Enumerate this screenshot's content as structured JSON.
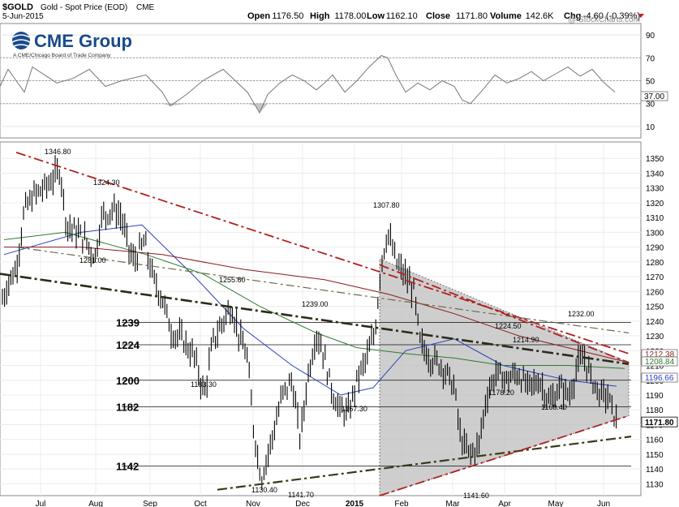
{
  "header": {
    "symbol": "$GOLD",
    "name": "Gold - Spot Price (EOD)",
    "exchange": "CME",
    "date": "5-Jun-2015",
    "watermark": "@ StockCharts.com",
    "quote": [
      {
        "label": "Open",
        "value": "1176.50"
      },
      {
        "label": "High",
        "value": "1178.00"
      },
      {
        "label": "Low",
        "value": "1162.10"
      },
      {
        "label": "Close",
        "value": "1171.80"
      },
      {
        "label": "Volume",
        "value": "142.6K"
      },
      {
        "label": "Chg",
        "value": "-4.60 (-0.39%)"
      }
    ]
  },
  "logo": {
    "text": "CME Group",
    "subtext": "A CME/Chicago Board of Trade Company"
  },
  "chart_data": [
    {
      "type": "line",
      "panel": "indicator",
      "yticks": [
        90,
        70,
        50,
        30,
        10
      ],
      "last_value_label": "37.00",
      "ylim": [
        0,
        100
      ],
      "reference_levels": [
        30,
        50,
        70
      ],
      "series": [
        {
          "x": [
            0,
            10,
            20,
            30,
            40,
            55,
            70,
            90,
            110,
            130,
            150,
            180,
            200,
            210,
            230,
            250,
            275,
            290,
            305,
            315,
            320,
            330,
            345,
            360,
            375,
            390,
            400,
            410,
            425,
            440,
            455,
            470,
            478,
            488,
            500,
            515,
            530,
            545,
            560,
            570,
            580,
            595,
            610,
            625,
            640,
            655,
            670,
            685,
            700,
            715,
            730,
            745,
            758
          ],
          "values": [
            45,
            60,
            50,
            40,
            62,
            55,
            48,
            52,
            60,
            45,
            50,
            55,
            40,
            28,
            38,
            50,
            60,
            50,
            40,
            28,
            22,
            38,
            48,
            55,
            50,
            42,
            48,
            55,
            40,
            50,
            62,
            72,
            70,
            55,
            40,
            48,
            42,
            50,
            45,
            33,
            30,
            42,
            55,
            48,
            52,
            58,
            50,
            56,
            62,
            54,
            60,
            48,
            40
          ]
        }
      ]
    },
    {
      "type": "candlestick",
      "panel": "price",
      "title": "",
      "ylim": [
        1122,
        1360
      ],
      "yticks": [
        1130,
        1140,
        1150,
        1160,
        1170,
        1180,
        1190,
        1200,
        1210,
        1220,
        1230,
        1240,
        1250,
        1260,
        1270,
        1280,
        1290,
        1300,
        1310,
        1320,
        1330,
        1340,
        1350
      ],
      "x_axis_months": [
        "Jul",
        "Aug",
        "Sep",
        "Oct",
        "Nov",
        "Dec",
        "2015",
        "Feb",
        "Mar",
        "Apr",
        "May",
        "Jun"
      ],
      "last_price_label": "1171.80",
      "right_axis_labels": [
        "1212.38",
        "1208.84",
        "1196.66"
      ],
      "horizontal_levels": [
        {
          "label": "1239",
          "value": 1239
        },
        {
          "label": "1224",
          "value": 1224
        },
        {
          "label": "1200",
          "value": 1200
        },
        {
          "label": "1182",
          "value": 1182
        },
        {
          "label": "1142",
          "value": 1142
        }
      ],
      "annotations": [
        "1346.80",
        "1324.30",
        "1281.00",
        "1255.60",
        "1239.00",
        "1183.30",
        "1141.70",
        "1130.40",
        "1167.30",
        "1307.80",
        "1224.50",
        "1214.90",
        "1232.00",
        "1178.20",
        "1168.40",
        "1141.60"
      ],
      "price_path": [
        {
          "x": 3,
          "y": 1255
        },
        {
          "x": 12,
          "y": 1268
        },
        {
          "x": 20,
          "y": 1275
        },
        {
          "x": 30,
          "y": 1315
        },
        {
          "x": 42,
          "y": 1325
        },
        {
          "x": 55,
          "y": 1330
        },
        {
          "x": 68,
          "y": 1338
        },
        {
          "x": 74,
          "y": 1343
        },
        {
          "x": 82,
          "y": 1305
        },
        {
          "x": 95,
          "y": 1300
        },
        {
          "x": 105,
          "y": 1295
        },
        {
          "x": 117,
          "y": 1283
        },
        {
          "x": 125,
          "y": 1310
        },
        {
          "x": 140,
          "y": 1316
        },
        {
          "x": 150,
          "y": 1310
        },
        {
          "x": 158,
          "y": 1290
        },
        {
          "x": 165,
          "y": 1280
        },
        {
          "x": 178,
          "y": 1294
        },
        {
          "x": 188,
          "y": 1270
        },
        {
          "x": 200,
          "y": 1255
        },
        {
          "x": 212,
          "y": 1232
        },
        {
          "x": 225,
          "y": 1228
        },
        {
          "x": 240,
          "y": 1215
        },
        {
          "x": 252,
          "y": 1190
        },
        {
          "x": 262,
          "y": 1225
        },
        {
          "x": 275,
          "y": 1240
        },
        {
          "x": 285,
          "y": 1250
        },
        {
          "x": 295,
          "y": 1230
        },
        {
          "x": 305,
          "y": 1215
        },
        {
          "x": 312,
          "y": 1170
        },
        {
          "x": 322,
          "y": 1133
        },
        {
          "x": 335,
          "y": 1160
        },
        {
          "x": 348,
          "y": 1190
        },
        {
          "x": 360,
          "y": 1200
        },
        {
          "x": 370,
          "y": 1160
        },
        {
          "x": 380,
          "y": 1205
        },
        {
          "x": 390,
          "y": 1232
        },
        {
          "x": 398,
          "y": 1220
        },
        {
          "x": 408,
          "y": 1195
        },
        {
          "x": 418,
          "y": 1180
        },
        {
          "x": 430,
          "y": 1178
        },
        {
          "x": 440,
          "y": 1200
        },
        {
          "x": 452,
          "y": 1215
        },
        {
          "x": 462,
          "y": 1232
        },
        {
          "x": 470,
          "y": 1280
        },
        {
          "x": 478,
          "y": 1300
        },
        {
          "x": 488,
          "y": 1280
        },
        {
          "x": 500,
          "y": 1270
        },
        {
          "x": 510,
          "y": 1260
        },
        {
          "x": 518,
          "y": 1225
        },
        {
          "x": 530,
          "y": 1215
        },
        {
          "x": 545,
          "y": 1210
        },
        {
          "x": 560,
          "y": 1195
        },
        {
          "x": 568,
          "y": 1160
        },
        {
          "x": 578,
          "y": 1150
        },
        {
          "x": 590,
          "y": 1155
        },
        {
          "x": 600,
          "y": 1190
        },
        {
          "x": 612,
          "y": 1205
        },
        {
          "x": 625,
          "y": 1200
        },
        {
          "x": 638,
          "y": 1205
        },
        {
          "x": 650,
          "y": 1195
        },
        {
          "x": 665,
          "y": 1200
        },
        {
          "x": 678,
          "y": 1185
        },
        {
          "x": 690,
          "y": 1195
        },
        {
          "x": 702,
          "y": 1190
        },
        {
          "x": 712,
          "y": 1210
        },
        {
          "x": 720,
          "y": 1215
        },
        {
          "x": 730,
          "y": 1200
        },
        {
          "x": 740,
          "y": 1190
        },
        {
          "x": 748,
          "y": 1190
        },
        {
          "x": 755,
          "y": 1180
        },
        {
          "x": 760,
          "y": 1172
        }
      ],
      "moving_averages": {
        "blue": [
          {
            "x": 5,
            "y": 1285
          },
          {
            "x": 100,
            "y": 1300
          },
          {
            "x": 175,
            "y": 1305
          },
          {
            "x": 240,
            "y": 1270
          },
          {
            "x": 300,
            "y": 1235
          },
          {
            "x": 360,
            "y": 1210
          },
          {
            "x": 420,
            "y": 1190
          },
          {
            "x": 460,
            "y": 1195
          },
          {
            "x": 500,
            "y": 1220
          },
          {
            "x": 560,
            "y": 1228
          },
          {
            "x": 620,
            "y": 1210
          },
          {
            "x": 700,
            "y": 1200
          },
          {
            "x": 760,
            "y": 1196
          }
        ],
        "green": [
          {
            "x": 5,
            "y": 1295
          },
          {
            "x": 80,
            "y": 1300
          },
          {
            "x": 180,
            "y": 1285
          },
          {
            "x": 250,
            "y": 1272
          },
          {
            "x": 320,
            "y": 1250
          },
          {
            "x": 390,
            "y": 1232
          },
          {
            "x": 440,
            "y": 1222
          },
          {
            "x": 500,
            "y": 1218
          },
          {
            "x": 560,
            "y": 1215
          },
          {
            "x": 620,
            "y": 1210
          },
          {
            "x": 700,
            "y": 1210
          },
          {
            "x": 770,
            "y": 1208
          }
        ],
        "red": [
          {
            "x": 5,
            "y": 1290
          },
          {
            "x": 100,
            "y": 1290
          },
          {
            "x": 200,
            "y": 1285
          },
          {
            "x": 300,
            "y": 1275
          },
          {
            "x": 400,
            "y": 1268
          },
          {
            "x": 480,
            "y": 1258
          },
          {
            "x": 560,
            "y": 1245
          },
          {
            "x": 640,
            "y": 1230
          },
          {
            "x": 700,
            "y": 1222
          },
          {
            "x": 775,
            "y": 1212
          }
        ]
      },
      "trendlines": [
        {
          "style": "black-dash-dot",
          "x1": 0,
          "y1": 1272,
          "x2": 775,
          "y2": 1211
        },
        {
          "style": "red-dash-dot",
          "x1": 20,
          "y1": 1354,
          "x2": 775,
          "y2": 1218
        },
        {
          "style": "gray-dash-dot",
          "x1": 20,
          "y1": 1290,
          "x2": 775,
          "y2": 1232
        },
        {
          "style": "dark-dash-dot",
          "x1": 268,
          "y1": 1126,
          "x2": 778,
          "y2": 1162
        },
        {
          "style": "red-dash-dot",
          "x1": 468,
          "y1": 1278,
          "x2": 775,
          "y2": 1212
        },
        {
          "style": "red-dash-dot",
          "x1": 468,
          "y1": 1122,
          "x2": 775,
          "y2": 1176
        }
      ],
      "shaded_triangle": [
        {
          "x": 468,
          "y": 1122
        },
        {
          "x": 468,
          "y": 1282
        },
        {
          "x": 775,
          "y": 1212
        },
        {
          "x": 775,
          "y": 1176
        }
      ]
    }
  ]
}
